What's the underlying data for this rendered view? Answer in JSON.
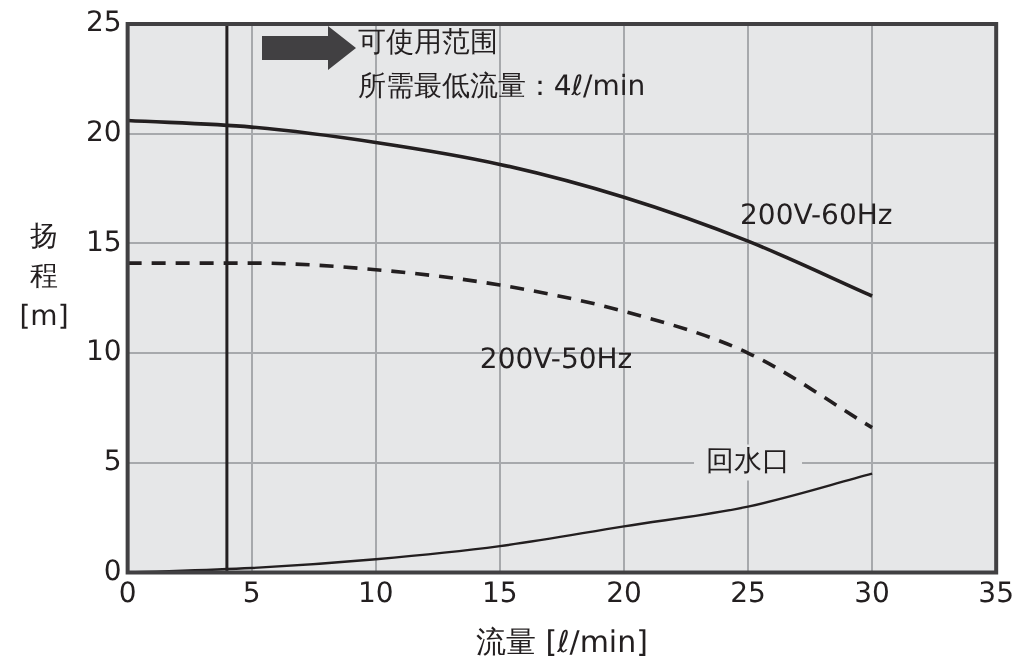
{
  "chart_data": {
    "type": "line",
    "xlabel": "流量 [ℓ/min]",
    "ylabel": "扬程 [m]",
    "x": [
      0,
      5,
      10,
      15,
      20,
      25,
      30
    ],
    "series": [
      {
        "name": "200V-60Hz",
        "color": "#231f20",
        "line_style": "solid",
        "values": [
          20.6,
          20.3,
          19.6,
          18.6,
          17.1,
          15.1,
          12.6
        ]
      },
      {
        "name": "200V-50Hz",
        "color": "#231f20",
        "line_style": "dashed",
        "values": [
          14.1,
          14.1,
          13.8,
          13.1,
          11.9,
          10.0,
          6.6
        ]
      },
      {
        "name": "回水口",
        "color": "#231f20",
        "line_style": "solid",
        "values": [
          0,
          0.2,
          0.6,
          1.2,
          2.1,
          3.0,
          4.5
        ]
      }
    ],
    "xlim": [
      0,
      35
    ],
    "xticks": [
      0,
      5,
      10,
      15,
      20,
      25,
      30,
      35
    ],
    "ylim": [
      0,
      25
    ],
    "yticks": [
      0,
      5,
      10,
      15,
      20,
      25
    ],
    "grid": true,
    "legend": false,
    "marker": "none",
    "ref_lines": [
      {
        "axis": "x",
        "value": 4,
        "color": "#231f20"
      }
    ],
    "annotations": [
      "可使用范围",
      "所需最低流量：4ℓ/min"
    ]
  }
}
